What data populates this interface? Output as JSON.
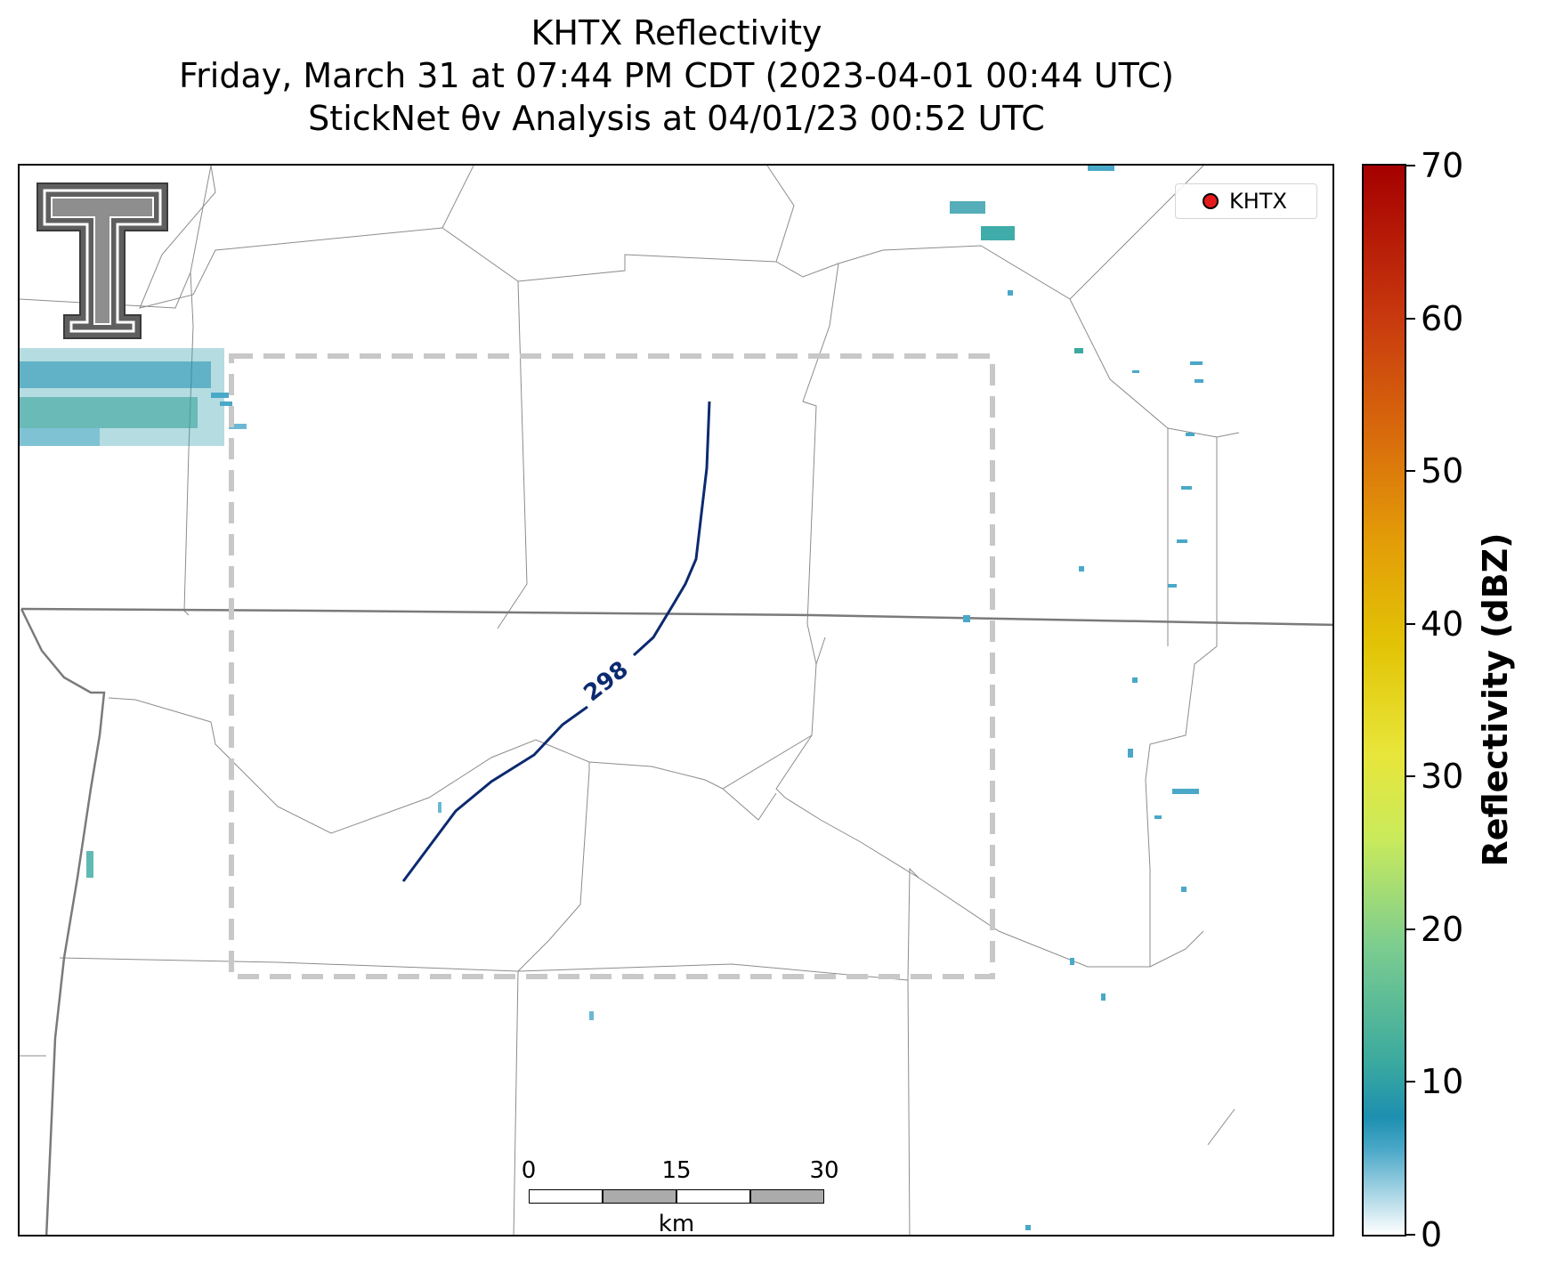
{
  "title": {
    "line1": "KHTX Reflectivity",
    "line2": "Friday, March 31 at 07:44 PM CDT (2023-04-01 00:44 UTC)",
    "line3": "StickNet θv Analysis at 04/01/23 00:52 UTC"
  },
  "legend": {
    "station": "KHTX",
    "marker_color": "#e31a1c"
  },
  "colorbar": {
    "label": "Reflectivity (dBZ)",
    "ticks": [
      "0",
      "10",
      "20",
      "30",
      "40",
      "50",
      "60",
      "70"
    ],
    "min": 0,
    "max": 70
  },
  "contour": {
    "label": "298",
    "color": "#0b2a6f"
  },
  "scale_bar": {
    "labels": [
      "0",
      "15",
      "30"
    ],
    "unit": "km"
  },
  "logo": {
    "name": "texas-tech-double-t-logo"
  },
  "analysis_box": {
    "style": "dashed",
    "color": "#c8c8c8"
  }
}
